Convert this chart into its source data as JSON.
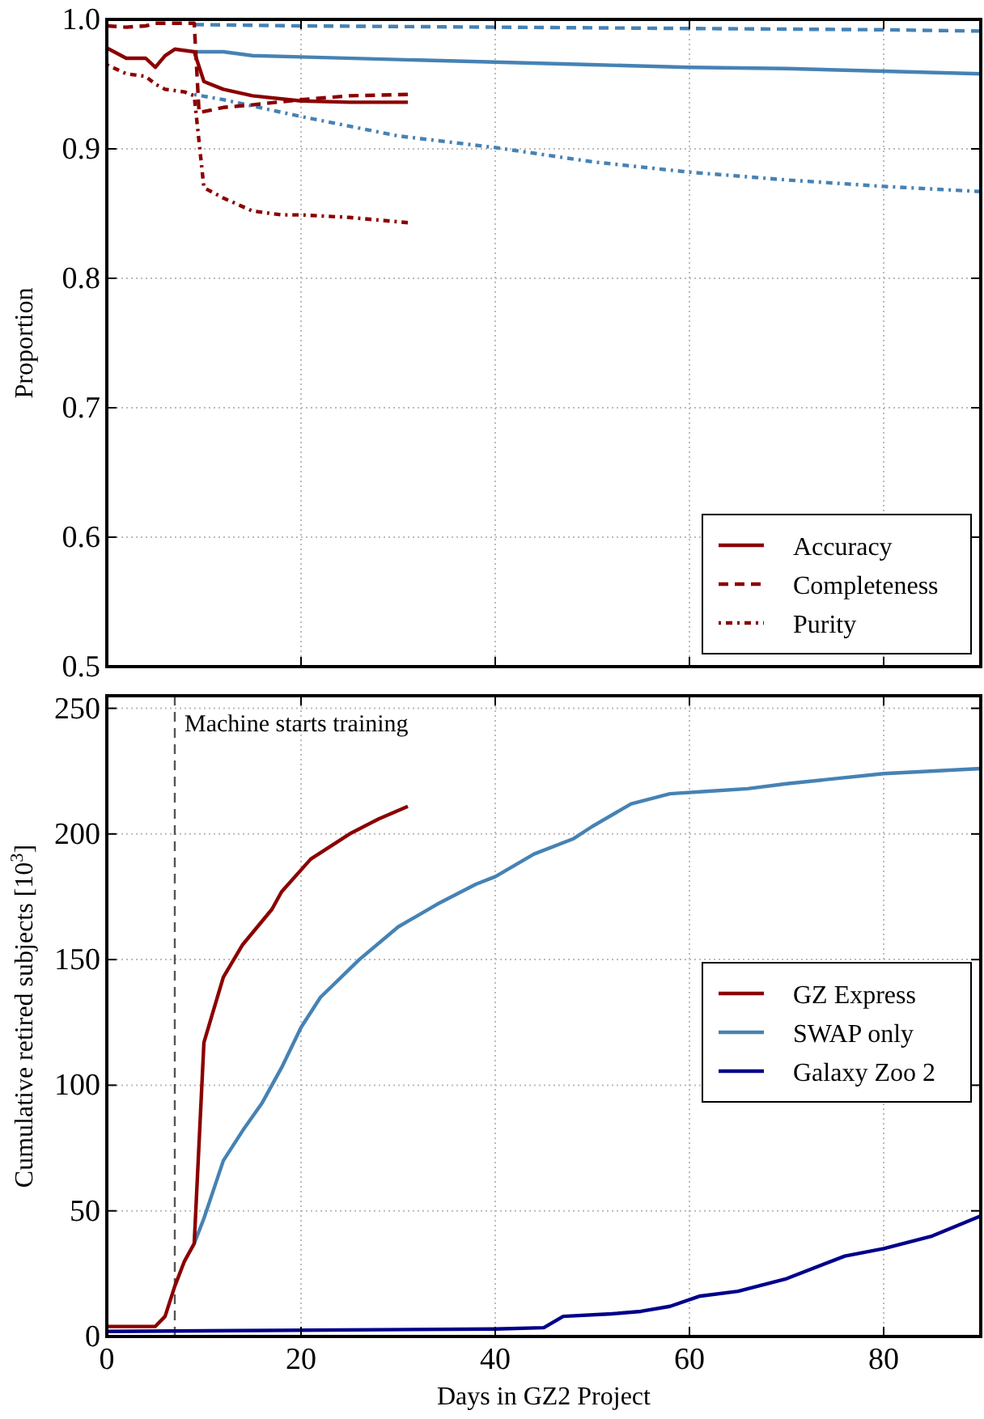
{
  "chart_data": [
    {
      "type": "line",
      "ylabel": "Proportion",
      "xlim": [
        0,
        90
      ],
      "xticks": [
        0,
        20,
        40,
        60,
        80
      ],
      "ylim": [
        0.5,
        1.0
      ],
      "yticks": [
        0.5,
        0.6,
        0.7,
        0.8,
        0.9,
        {
          "value": 1.0,
          "label": "1.0"
        }
      ],
      "tick_labels": "y",
      "grid": true,
      "legend": "bottom right",
      "series": [
        {
          "name": "Accuracy",
          "color": "#8b0000",
          "line_style": "solid",
          "x": [
            0,
            2,
            4,
            5,
            6,
            7,
            9,
            10,
            12,
            15,
            20,
            25,
            31
          ],
          "values": [
            0.978,
            0.97,
            0.97,
            0.963,
            0.972,
            0.977,
            0.975,
            0.952,
            0.946,
            0.941,
            0.937,
            0.936,
            0.936
          ]
        },
        {
          "name": "Completeness",
          "color": "#8b0000",
          "line_style": "dashed",
          "x": [
            0,
            2,
            4,
            5,
            9,
            9.5,
            12,
            15,
            20,
            25,
            31
          ],
          "values": [
            0.995,
            0.994,
            0.995,
            0.997,
            0.997,
            0.928,
            0.932,
            0.934,
            0.938,
            0.941,
            0.942
          ]
        },
        {
          "name": "Purity",
          "color": "#8b0000",
          "line_style": "dotted",
          "x": [
            0,
            2,
            4,
            5,
            6,
            8,
            9,
            10,
            12,
            15,
            18,
            20,
            25,
            31
          ],
          "values": [
            0.965,
            0.958,
            0.956,
            0.95,
            0.946,
            0.944,
            0.941,
            0.87,
            0.862,
            0.852,
            0.849,
            0.849,
            0.847,
            0.843
          ]
        },
        {
          "color": "#4682b4",
          "line_style": "solid",
          "x": [
            9,
            12,
            15,
            20,
            30,
            40,
            50,
            60,
            70,
            80,
            90
          ],
          "values": [
            0.975,
            0.975,
            0.972,
            0.971,
            0.969,
            0.967,
            0.965,
            0.963,
            0.962,
            0.96,
            0.958
          ]
        },
        {
          "color": "#4682b4",
          "line_style": "dashed",
          "x": [
            9,
            20,
            40,
            60,
            80,
            90
          ],
          "values": [
            0.996,
            0.995,
            0.994,
            0.993,
            0.992,
            0.991
          ]
        },
        {
          "color": "#4682b4",
          "line_style": "dotted",
          "x": [
            9,
            12,
            20,
            30,
            40,
            50,
            60,
            70,
            80,
            90
          ],
          "values": [
            0.942,
            0.938,
            0.925,
            0.91,
            0.901,
            0.89,
            0.882,
            0.876,
            0.871,
            0.867
          ]
        }
      ]
    },
    {
      "type": "line",
      "xlabel": "Days in GZ2 Project",
      "ylabel": "Cumulative retired subjects [10$^{3}$]",
      "xlim": [
        0,
        90
      ],
      "xticks": [
        0,
        20,
        40,
        60,
        80
      ],
      "ylim": [
        0,
        255
      ],
      "yticks": [
        0,
        50,
        100,
        150,
        200,
        250
      ],
      "grid": true,
      "legend": "right",
      "ref_lines": [
        {
          "axis": "x",
          "value": 7,
          "label": "Machine starts training",
          "color": "#555555",
          "line_style": "dashed"
        }
      ],
      "series": [
        {
          "name": "GZ Express",
          "color": "#8b0000",
          "x": [
            0,
            5,
            6,
            7,
            8,
            9,
            10,
            11,
            12,
            14,
            17,
            18,
            21,
            25,
            28,
            31
          ],
          "values": [
            4,
            4,
            8,
            20,
            30,
            37,
            117,
            130,
            143,
            156,
            170,
            177,
            190,
            200,
            206,
            211
          ]
        },
        {
          "name": "SWAP only",
          "color": "#4682b4",
          "x": [
            9,
            10,
            12,
            14,
            16,
            18,
            20,
            22,
            26,
            30,
            34,
            38,
            40,
            44,
            48,
            50,
            54,
            58,
            62,
            66,
            70,
            80,
            90
          ],
          "values": [
            37,
            47,
            70,
            82,
            93,
            107,
            123,
            135,
            150,
            163,
            172,
            180,
            183,
            192,
            198,
            203,
            212,
            216,
            217,
            218,
            220,
            224,
            226
          ]
        },
        {
          "name": "Galaxy Zoo 2",
          "color": "#00008b",
          "x": [
            0,
            40,
            45,
            47,
            52,
            55,
            58,
            61,
            65,
            70,
            76,
            80,
            85,
            90
          ],
          "values": [
            2,
            3,
            3.5,
            8,
            9,
            10,
            12,
            16,
            18,
            23,
            32,
            35,
            40,
            48
          ]
        }
      ]
    }
  ]
}
